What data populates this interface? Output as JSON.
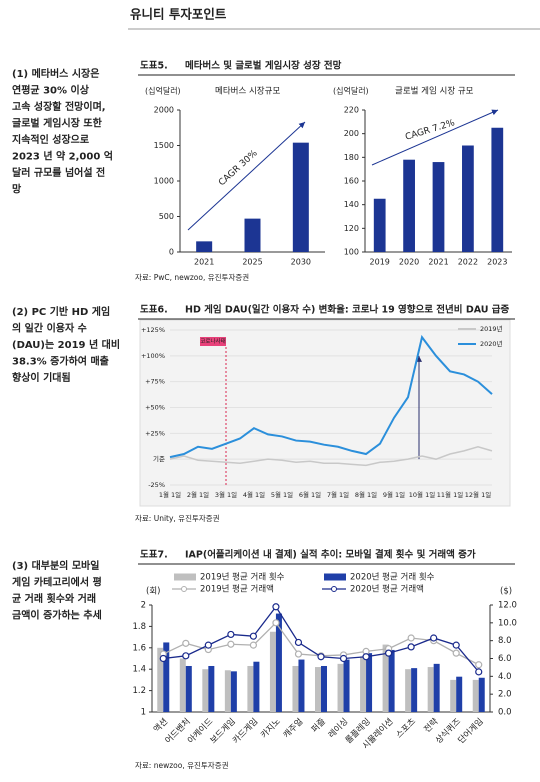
{
  "header": {
    "title": "유니티 투자포인트"
  },
  "points": [
    {
      "lines": [
        "(1) 메타버스 시장은",
        "연평균 30% 이상",
        "고속 성장할 전망이며,",
        "글로벌 게임시장 또한",
        "지속적인 성장으로",
        "2023 년 약 2,000 억",
        "달러 규모를 넘어설 전",
        "망"
      ]
    },
    {
      "lines": [
        "(2) PC 기반 HD 게임",
        "의 일간 이용자 수",
        "(DAU)는 2019 년 대비",
        "38.3% 증가하여 매출",
        "향상이 기대됨"
      ]
    },
    {
      "lines": [
        "(3) 대부분의 모바일",
        "게임 카테고리에서 평",
        "균 거래 횟수와 거래",
        "금액이 증가하는 추세"
      ]
    }
  ],
  "figures": [
    {
      "label": "도표5.",
      "title": "메타버스 및 글로벌 게임시장 성장 전망",
      "source": "자료: PwC, newzoo, 유진투자증권"
    },
    {
      "label": "도표6.",
      "title": "HD 게임 DAU(일간 이용자 수) 변화율: 코로나 19 영향으로 전년비 DAU 급증",
      "source": "자료: Unity, 유진투자증권"
    },
    {
      "label": "도표7.",
      "title": "IAP(어플리케이션 내 결제) 실적 추이: 모바일 결제 횟수 및 거래액 증가",
      "source": "자료: newzoo, 유진투자증권"
    }
  ],
  "chart_data": [
    {
      "type": "bar",
      "unit": "(십억달러)",
      "subtitle": "메타버스 시장규모",
      "categories": [
        "2021",
        "2025",
        "2030"
      ],
      "values": [
        150,
        470,
        1540
      ],
      "color": "#1c3593",
      "ylim": [
        0,
        2000
      ],
      "yticks": [
        0,
        500,
        1000,
        1500,
        2000
      ],
      "annotation": "CAGR 30%"
    },
    {
      "type": "bar",
      "unit": "(십억달러)",
      "subtitle": "글로벌 게임 시장 규모",
      "categories": [
        "2019",
        "2020",
        "2021",
        "2022",
        "2023"
      ],
      "values": [
        145,
        178,
        176,
        190,
        205
      ],
      "color": "#1c3593",
      "ylim": [
        100,
        220
      ],
      "yticks": [
        100,
        120,
        140,
        160,
        180,
        200,
        220
      ],
      "annotation": "CAGR 7.2%"
    },
    {
      "type": "line",
      "categories": [
        "1월 1일",
        null,
        "2월 1일",
        null,
        "3월 1일",
        null,
        "4월 1일",
        null,
        "5월 1일",
        null,
        "6월 1일",
        null,
        "7월 1일",
        null,
        "8월 1일",
        null,
        "9월 1일",
        null,
        "10월 1일",
        null,
        "11월 1일",
        null,
        "12월 1일",
        null
      ],
      "series": [
        {
          "name": "2019년",
          "color": "#c8c8c8",
          "values": [
            0,
            3,
            -1,
            -2,
            -3,
            -4,
            -2,
            0,
            -1,
            -3,
            -2,
            -4,
            -4,
            -5,
            -6,
            -3,
            -2,
            0,
            3,
            0,
            5,
            8,
            12,
            8
          ]
        },
        {
          "name": "2020년",
          "color": "#2b8fdb",
          "values": [
            2,
            5,
            12,
            10,
            15,
            20,
            30,
            24,
            22,
            18,
            17,
            14,
            12,
            8,
            5,
            15,
            40,
            60,
            118,
            100,
            85,
            82,
            75,
            63
          ]
        }
      ],
      "ylim": [
        -25,
        125
      ],
      "yticks": [
        {
          "value": -25,
          "label": "-25%"
        },
        {
          "value": 0,
          "label": "기준"
        },
        {
          "value": 25,
          "label": "+25%"
        },
        {
          "value": 50,
          "label": "+50%"
        },
        {
          "value": 75,
          "label": "+75%"
        },
        {
          "value": 100,
          "label": "+100%"
        },
        {
          "value": 125,
          "label": "+125%"
        }
      ],
      "grid": true,
      "legend": "upper right",
      "annotation": "코로나사태"
    },
    {
      "type": "combo",
      "unit": "(회)",
      "unit2": "($)",
      "categories": [
        "액션",
        "어드벤처",
        "아케이드",
        "보드게임",
        "카드게임",
        "카지노",
        "캐주얼",
        "퍼즐",
        "레이싱",
        "롤플레잉",
        "시뮬레이션",
        "스포츠",
        "전략",
        "상식퀴즈",
        "단어게임"
      ],
      "series": [
        {
          "name": "2019년 평균 거래 횟수",
          "color": "#bfbfbf",
          "values": [
            1.6,
            1.5,
            1.4,
            1.39,
            1.43,
            1.75,
            1.43,
            1.42,
            1.45,
            1.52,
            1.63,
            1.4,
            1.42,
            1.3,
            1.3
          ]
        },
        {
          "name": "2020년 평균 거래 횟수",
          "color": "#1f3fa8",
          "values": [
            1.65,
            1.43,
            1.43,
            1.38,
            1.47,
            1.92,
            1.49,
            1.43,
            1.49,
            1.55,
            1.58,
            1.41,
            1.45,
            1.33,
            1.32
          ]
        },
        {
          "name": "2019년 평균 거래액",
          "color": "#b0b0b0",
          "axis": "y2",
          "values": [
            6.5,
            7.7,
            7.0,
            7.6,
            7.5,
            10.0,
            6.5,
            6.3,
            6.4,
            6.8,
            7.1,
            8.3,
            8.0,
            6.6,
            5.3
          ]
        },
        {
          "name": "2020년 평균 거래액",
          "color": "#1a2a8c",
          "axis": "y2",
          "values": [
            6.0,
            6.3,
            7.5,
            8.7,
            8.5,
            11.8,
            7.8,
            6.2,
            6.0,
            6.2,
            6.6,
            7.3,
            8.3,
            7.5,
            4.5
          ]
        }
      ],
      "ylim": [
        1,
        2
      ],
      "yticks": [
        1,
        1.2,
        1.4,
        1.6,
        1.8,
        2
      ],
      "y2lim": [
        0,
        12
      ],
      "y2ticks": [
        {
          "value": 0,
          "label": "0.0"
        },
        {
          "value": 2,
          "label": "2.0"
        },
        {
          "value": 4,
          "label": "4.0"
        },
        {
          "value": 6,
          "label": "6.0"
        },
        {
          "value": 8,
          "label": "8.0"
        },
        {
          "value": 10,
          "label": "10.0"
        },
        {
          "value": 12,
          "label": "12.0"
        }
      ]
    }
  ]
}
